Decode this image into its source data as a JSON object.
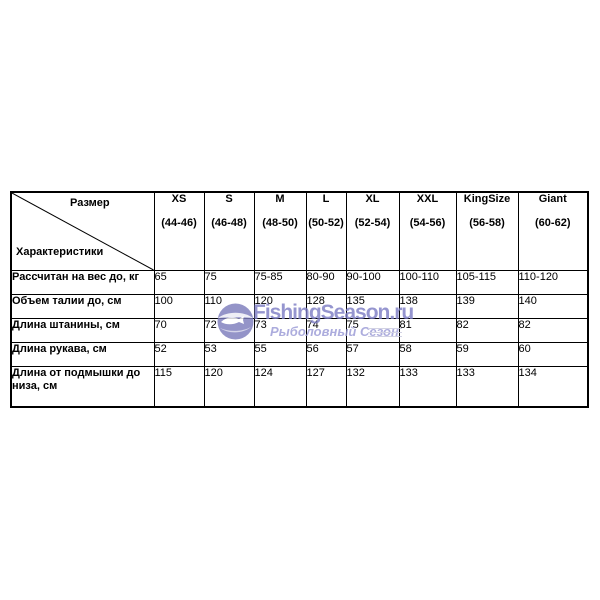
{
  "table": {
    "corner": {
      "top_label": "Размер",
      "bottom_label": "Характеристики"
    },
    "columns": [
      {
        "size": "XS",
        "range": "(44-46)"
      },
      {
        "size": "S",
        "range": "(46-48)"
      },
      {
        "size": "M",
        "range": "(48-50)"
      },
      {
        "size": "L",
        "range": "(50-52)"
      },
      {
        "size": "XL",
        "range": "(52-54)"
      },
      {
        "size": "XXL",
        "range": "(54-56)"
      },
      {
        "size": "KingSize",
        "range": "(56-58)"
      },
      {
        "size": "Giant",
        "range": "(60-62)"
      }
    ],
    "rows": [
      {
        "label": "Рассчитан на вес до, кг",
        "values": [
          "65",
          "75",
          "75-85",
          "80-90",
          "90-100",
          "100-110",
          "105-115",
          "110-120"
        ]
      },
      {
        "label": "Объем талии до, см",
        "values": [
          "100",
          "110",
          "120",
          "128",
          "135",
          "138",
          "139",
          "140"
        ]
      },
      {
        "label": "Длина штанины, см",
        "values": [
          "70",
          "72",
          "73",
          "74",
          "75",
          "81",
          "82",
          "82"
        ]
      },
      {
        "label": "Длина рукава, см",
        "values": [
          "52",
          "53",
          "55",
          "56",
          "57",
          "58",
          "59",
          "60"
        ]
      },
      {
        "label": "Длина от подмышки до низа, см",
        "values": [
          "115",
          "120",
          "124",
          "127",
          "132",
          "133",
          "133",
          "134"
        ]
      }
    ]
  },
  "watermark": {
    "title": "FishingSeason.ru",
    "subtitle": "Рыболовный Сезон",
    "title_color": "#7e7ec5",
    "subtitle_color": "#9b9bd6",
    "globe_color": "#7d7dbd"
  }
}
